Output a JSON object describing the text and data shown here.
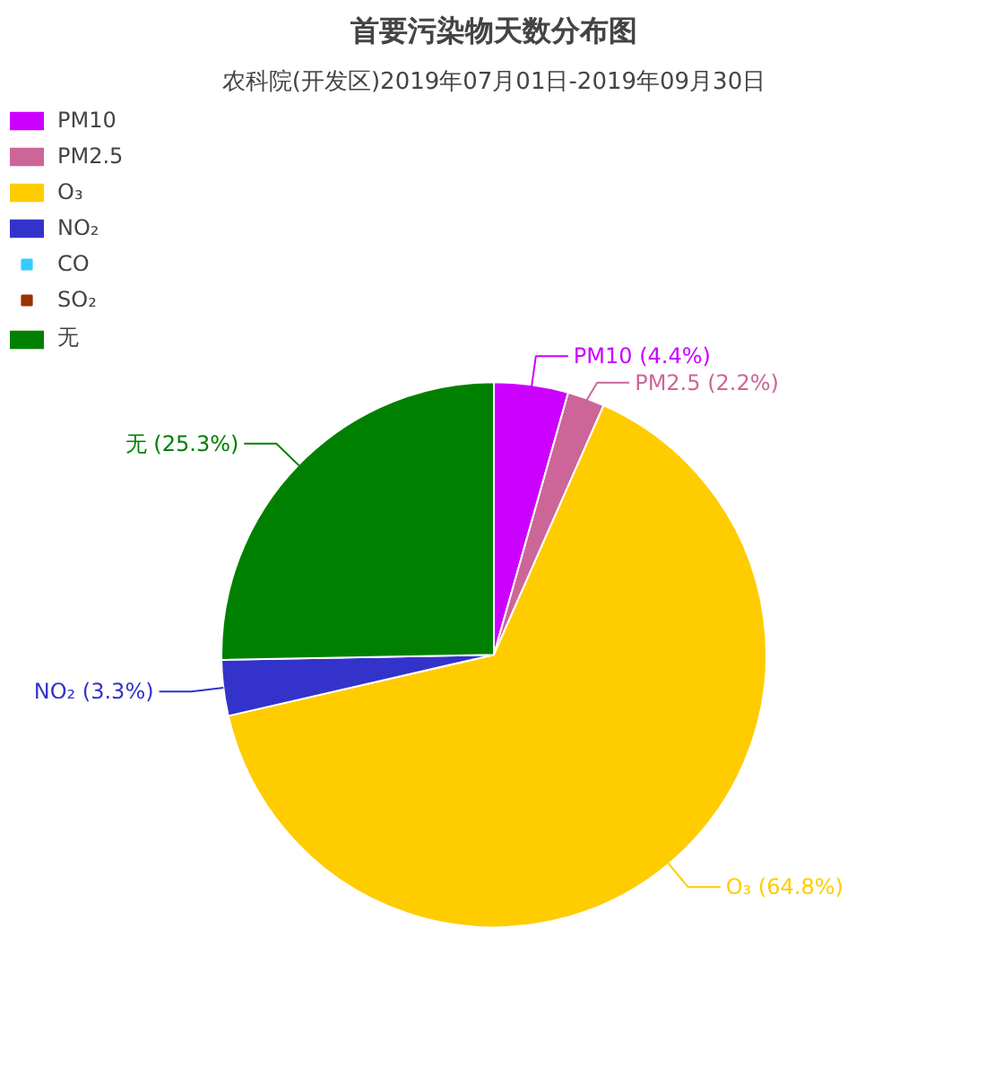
{
  "chart_data": {
    "type": "pie",
    "title": "首要污染物天数分布图",
    "subtitle": "农科院(开发区)2019年07月01日-2019年09月30日",
    "categories": [
      "PM10",
      "PM2.5",
      "O₃",
      "NO₂",
      "CO",
      "SO₂",
      "无"
    ],
    "values": [
      4.4,
      2.2,
      64.8,
      3.3,
      0,
      0,
      25.3
    ],
    "colors": [
      "#cc00ff",
      "#cc6699",
      "#ffcc00",
      "#3333cc",
      "#33ccff",
      "#993300",
      "#008000"
    ],
    "value_labels": [
      "(4.4%)",
      "(2.2%)",
      "(64.8%)",
      "(3.3%)",
      null,
      null,
      "(25.3%)"
    ],
    "legend": "top left"
  }
}
